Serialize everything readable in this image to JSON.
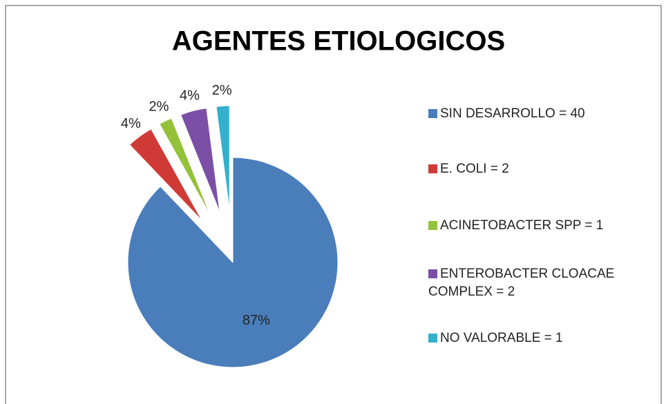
{
  "chart_data": {
    "type": "pie",
    "title": "AGENTES ETIOLOGICOS",
    "categories": [
      "SIN DESARROLLO = 40",
      "E. COLI = 2",
      "ACINETOBACTER SPP = 1",
      "ENTEROBACTER CLOACAE COMPLEX = 2",
      "NO VALORABLE = 1"
    ],
    "values": [
      87,
      4,
      2,
      4,
      2
    ],
    "value_labels": [
      "87%",
      "4%",
      "2%",
      "4%",
      "2%"
    ],
    "colors": [
      "#4a7ebb",
      "#d03a36",
      "#93c23a",
      "#7b4fa6",
      "#33b0cc"
    ],
    "legend": "right"
  }
}
